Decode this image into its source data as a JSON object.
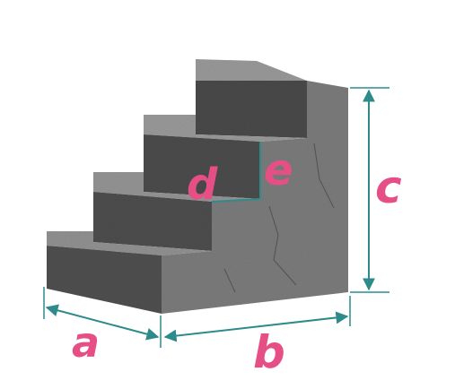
{
  "labels": {
    "a": "a",
    "b": "b",
    "c": "c",
    "d": "d",
    "e": "e"
  },
  "colors": {
    "label": "#e64f86",
    "dimension_line": "#2d8b8b",
    "concrete_top": "#8c8c8c",
    "concrete_front": "#4e4e4e",
    "concrete_side": "#7c7c7c",
    "background": "#ffffff"
  }
}
